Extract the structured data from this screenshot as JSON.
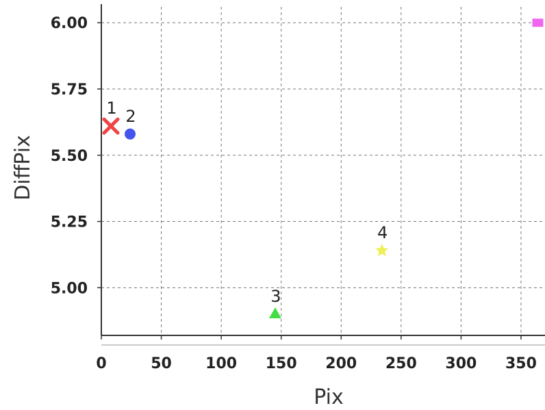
{
  "chart_data": {
    "type": "scatter",
    "xlabel": "Pix",
    "ylabel": "DiffPix",
    "xlim": [
      0,
      370
    ],
    "ylim": [
      4.82,
      6.06
    ],
    "xticks": [
      0,
      50,
      100,
      150,
      200,
      250,
      300,
      350
    ],
    "xtick_labels": [
      "0",
      "50",
      "100",
      "150",
      "200",
      "250",
      "300",
      "350"
    ],
    "yticks": [
      5.0,
      5.25,
      5.5,
      5.75,
      6.0
    ],
    "ytick_labels": [
      "5.00",
      "5.25",
      "5.50",
      "5.75",
      "6.00"
    ],
    "grid": true,
    "points": [
      {
        "label": "1",
        "x": 8,
        "y": 5.61,
        "marker": "x",
        "color": "#ee4444"
      },
      {
        "label": "2",
        "x": 24,
        "y": 5.58,
        "marker": "circle",
        "color": "#4455ee"
      },
      {
        "label": "3",
        "x": 145,
        "y": 4.9,
        "marker": "triangle",
        "color": "#44dd44"
      },
      {
        "label": "4",
        "x": 234,
        "y": 5.14,
        "marker": "star",
        "color": "#eeee55"
      },
      {
        "label": "",
        "x": 364,
        "y": 6.0,
        "marker": "square",
        "color": "#ee66ee"
      }
    ]
  }
}
